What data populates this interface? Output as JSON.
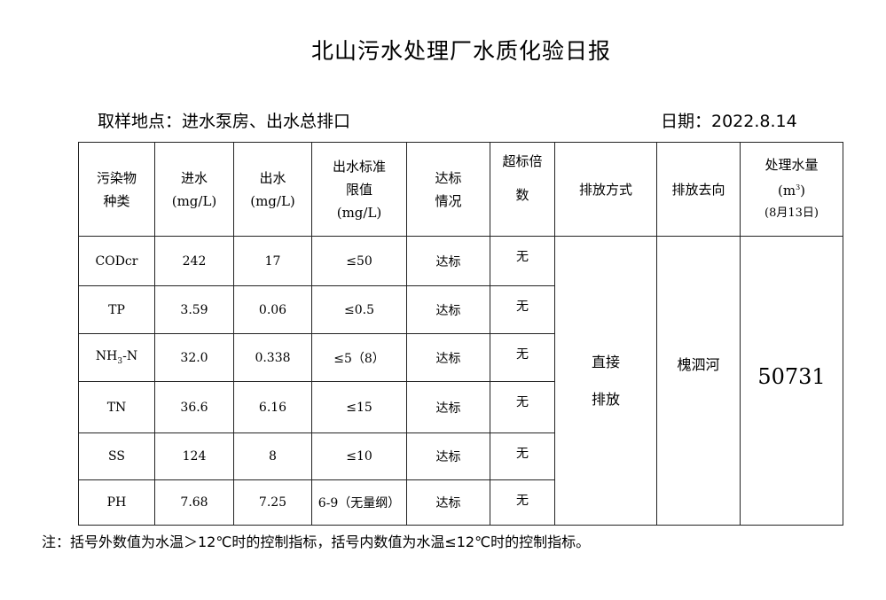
{
  "title": "北山污水处理厂水质化验日报",
  "location": "取样地点：进水泵房、出水总排口",
  "date": "日期：2022.8.14",
  "headers": {
    "pollutant": [
      "污染物",
      "种类"
    ],
    "inflow": [
      "进水",
      "(mg/L)"
    ],
    "outflow": [
      "出水",
      "(mg/L)"
    ],
    "limit": [
      "出水标准",
      "限值",
      "(mg/L)"
    ],
    "status": [
      "达标",
      "情况"
    ],
    "exceed": [
      "超标倍",
      "数"
    ],
    "method": "排放方式",
    "destination": "排放去向",
    "volume": [
      "处理水量",
      "(m",
      "3",
      ")",
      "(8月13日)"
    ]
  },
  "rows": [
    {
      "pollutant": "CODcr",
      "inflow": "242",
      "outflow": "17",
      "limit": "≤50",
      "status": "达标",
      "exceed": "无"
    },
    {
      "pollutant": "TP",
      "inflow": "3.59",
      "outflow": "0.06",
      "limit": "≤0.5",
      "status": "达标",
      "exceed": "无"
    },
    {
      "pollutant": "NH",
      "pollutant_sub": "3",
      "pollutant_suffix": "-N",
      "inflow": "32.0",
      "outflow": "0.338",
      "limit": "≤5（8）",
      "status": "达标",
      "exceed": "无"
    },
    {
      "pollutant": "TN",
      "inflow": "36.6",
      "outflow": "6.16",
      "limit": "≤15",
      "status": "达标",
      "exceed": "无"
    },
    {
      "pollutant": "SS",
      "inflow": "124",
      "outflow": "8",
      "limit": "≤10",
      "status": "达标",
      "exceed": "无"
    },
    {
      "pollutant": "PH",
      "inflow": "7.68",
      "outflow": "7.25",
      "limit": "6-9（无量纲）",
      "status": "达标",
      "exceed": "无"
    }
  ],
  "merged": {
    "method": [
      "直接",
      "排放"
    ],
    "destination": "槐泗河",
    "volume": "50731"
  },
  "note": "注：括号外数值为水温＞12℃时的控制指标，括号内数值为水温≤12℃时的控制指标。"
}
